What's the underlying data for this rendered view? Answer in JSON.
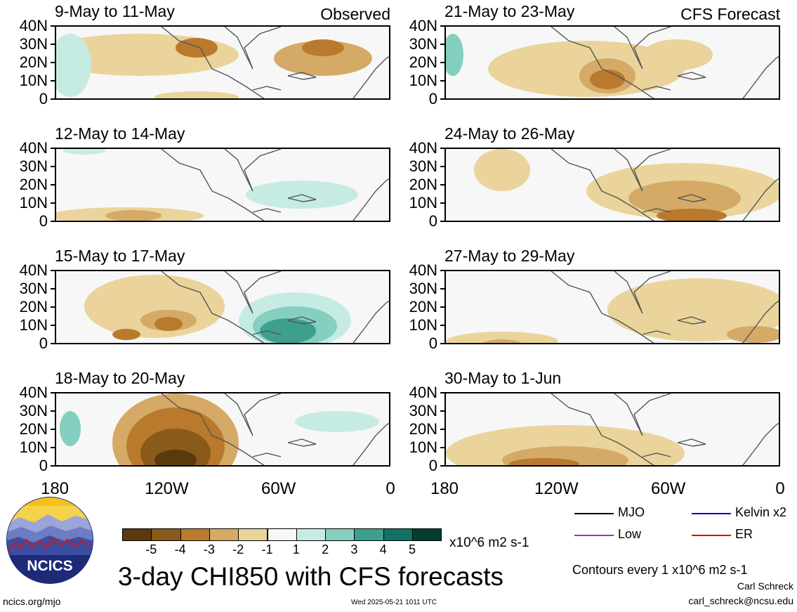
{
  "panels": [
    {
      "title": "9-May to 11-May",
      "tag": "Observed"
    },
    {
      "title": "21-May to 23-May",
      "tag": "CFS Forecast"
    },
    {
      "title": "12-May to 14-May",
      "tag": ""
    },
    {
      "title": "24-May to 26-May",
      "tag": ""
    },
    {
      "title": "15-May to 17-May",
      "tag": ""
    },
    {
      "title": "27-May to 29-May",
      "tag": ""
    },
    {
      "title": "18-May to 20-May",
      "tag": ""
    },
    {
      "title": "30-May to 1-Jun",
      "tag": ""
    }
  ],
  "y_axis": [
    "40N",
    "30N",
    "20N",
    "10N",
    "0"
  ],
  "x_axis": [
    "180",
    "120W",
    "60W",
    "0"
  ],
  "colorbar": {
    "labels": [
      "-5",
      "-4",
      "-3",
      "-2",
      "-1",
      "1",
      "2",
      "3",
      "4",
      "5"
    ],
    "colors": [
      "#5a3a0c",
      "#8a5a1a",
      "#b97a2e",
      "#d4aa66",
      "#ead49c",
      "#f5eed2",
      "#f7f7f7",
      "#c6ebe3",
      "#85cfc0",
      "#3e9f8e",
      "#107366",
      "#053d33"
    ],
    "units": "x10^6 m2 s-1"
  },
  "legend": [
    {
      "label": "MJO",
      "color": "#000000"
    },
    {
      "label": "Kelvin x2",
      "color": "#0000cc"
    },
    {
      "label": "Low",
      "color": "#9933cc"
    },
    {
      "label": "ER",
      "color": "#dd0000"
    }
  ],
  "footer": {
    "main_title": "3-day CHI850 with CFS forecasts",
    "contours_note": "Contours every 1 x10^6 m2 s-1",
    "author": "Carl Schreck",
    "email": "carl_schreck@ncsu.edu",
    "url": "ncics.org/mjo",
    "timestamp": "Wed 2025-05-21 1011 UTC",
    "logo_text": "NCICS"
  }
}
